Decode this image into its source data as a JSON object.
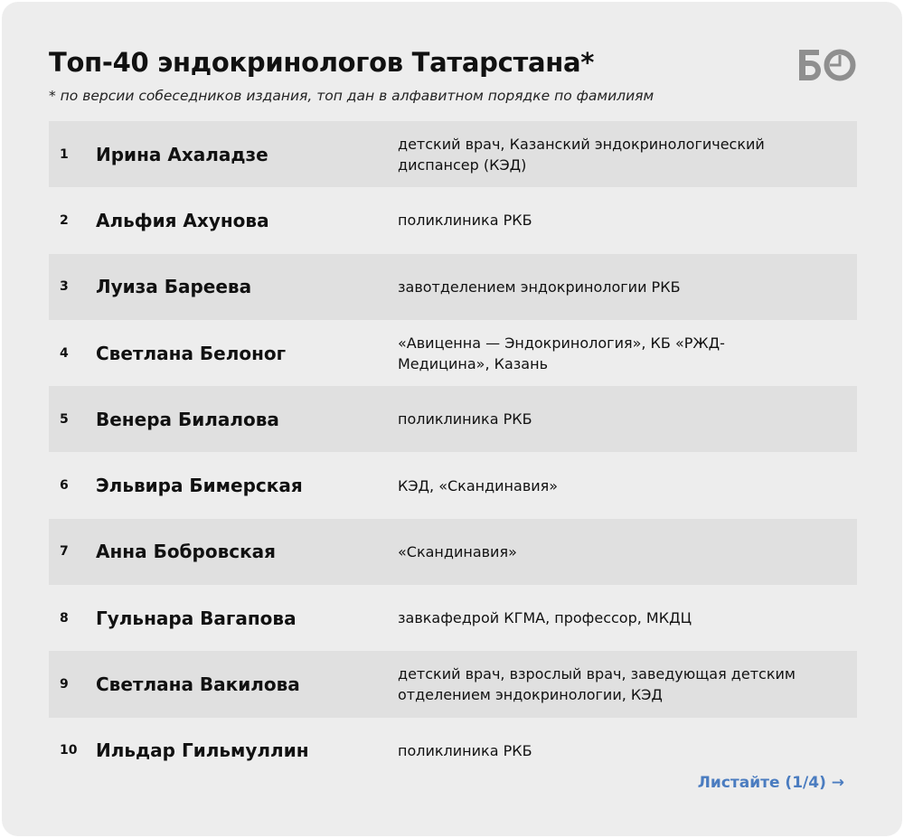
{
  "title": "Топ-40 эндокринологов Татарстана*",
  "subtitle": "* по версии собеседников издания, топ дан в алфавитном порядке по фамилиям",
  "logo": "БО",
  "rows": [
    {
      "num": "1",
      "name": "Ирина Ахаладзе",
      "place": "детский врач, Казанский эндокринологический диспансер (КЭД)"
    },
    {
      "num": "2",
      "name": "Альфия Ахунова",
      "place": "поликлиника РКБ"
    },
    {
      "num": "3",
      "name": "Луиза Бареева",
      "place": "завотделением эндокринологии РКБ"
    },
    {
      "num": "4",
      "name": "Светлана Белоног",
      "place": "«Авиценна — Эндокринология», КБ «РЖД-Медицина», Казань"
    },
    {
      "num": "5",
      "name": "Венера Билалова",
      "place": "поликлиника РКБ"
    },
    {
      "num": "6",
      "name": "Эльвира Бимерская",
      "place": "КЭД, «Скандинавия»"
    },
    {
      "num": "7",
      "name": "Анна Бобровская",
      "place": "«Скандинавия»"
    },
    {
      "num": "8",
      "name": "Гульнара Вагапова",
      "place": "завкафедрой КГМА, профессор, МКДЦ"
    },
    {
      "num": "9",
      "name": "Светлана Вакилова",
      "place": "детский врач, взрослый врач, заведующая детским отделением эндокринологии, КЭД"
    },
    {
      "num": "10",
      "name": "Ильдар Гильмуллин",
      "place": "поликлиника РКБ"
    }
  ],
  "pager": "Листайте (1/4) →",
  "colors": {
    "accent": "#4a7cc0",
    "row_shade": "#e0e0e0",
    "background": "#ededed",
    "logo": "#8f8f8f"
  }
}
